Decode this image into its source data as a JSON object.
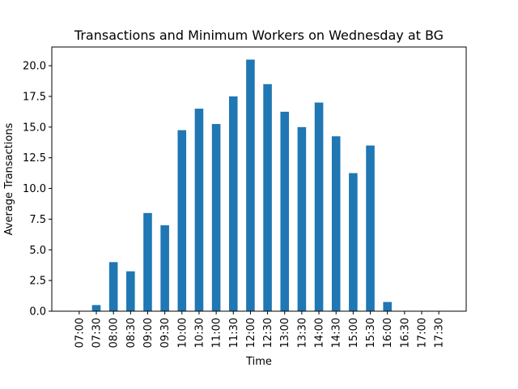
{
  "chart_data": {
    "type": "bar",
    "title": "Transactions and Minimum Workers on Wednesday at BG",
    "xlabel": "Time",
    "ylabel": "Average Transactions",
    "categories": [
      "07:00",
      "07:30",
      "08:00",
      "08:30",
      "09:00",
      "09:30",
      "10:00",
      "10:30",
      "11:00",
      "11:30",
      "12:00",
      "12:30",
      "13:00",
      "13:30",
      "14:00",
      "14:30",
      "15:00",
      "15:30",
      "16:00",
      "16:30",
      "17:00",
      "17:30"
    ],
    "values": [
      0,
      0.5,
      4.0,
      3.25,
      8.0,
      7.0,
      14.75,
      16.5,
      15.25,
      17.5,
      20.5,
      18.5,
      16.25,
      15.0,
      17.0,
      14.25,
      11.25,
      13.5,
      0.75,
      0,
      0,
      0
    ],
    "ylim": [
      0,
      21.525
    ],
    "yticks": [
      0.0,
      2.5,
      5.0,
      7.5,
      10.0,
      12.5,
      15.0,
      17.5,
      20.0
    ],
    "ytick_labels": [
      "0.0",
      "2.5",
      "5.0",
      "7.5",
      "10.0",
      "12.5",
      "15.0",
      "17.5",
      "20.0"
    ],
    "bar_color": "#1f77b4",
    "grid": false,
    "legend": "none"
  }
}
